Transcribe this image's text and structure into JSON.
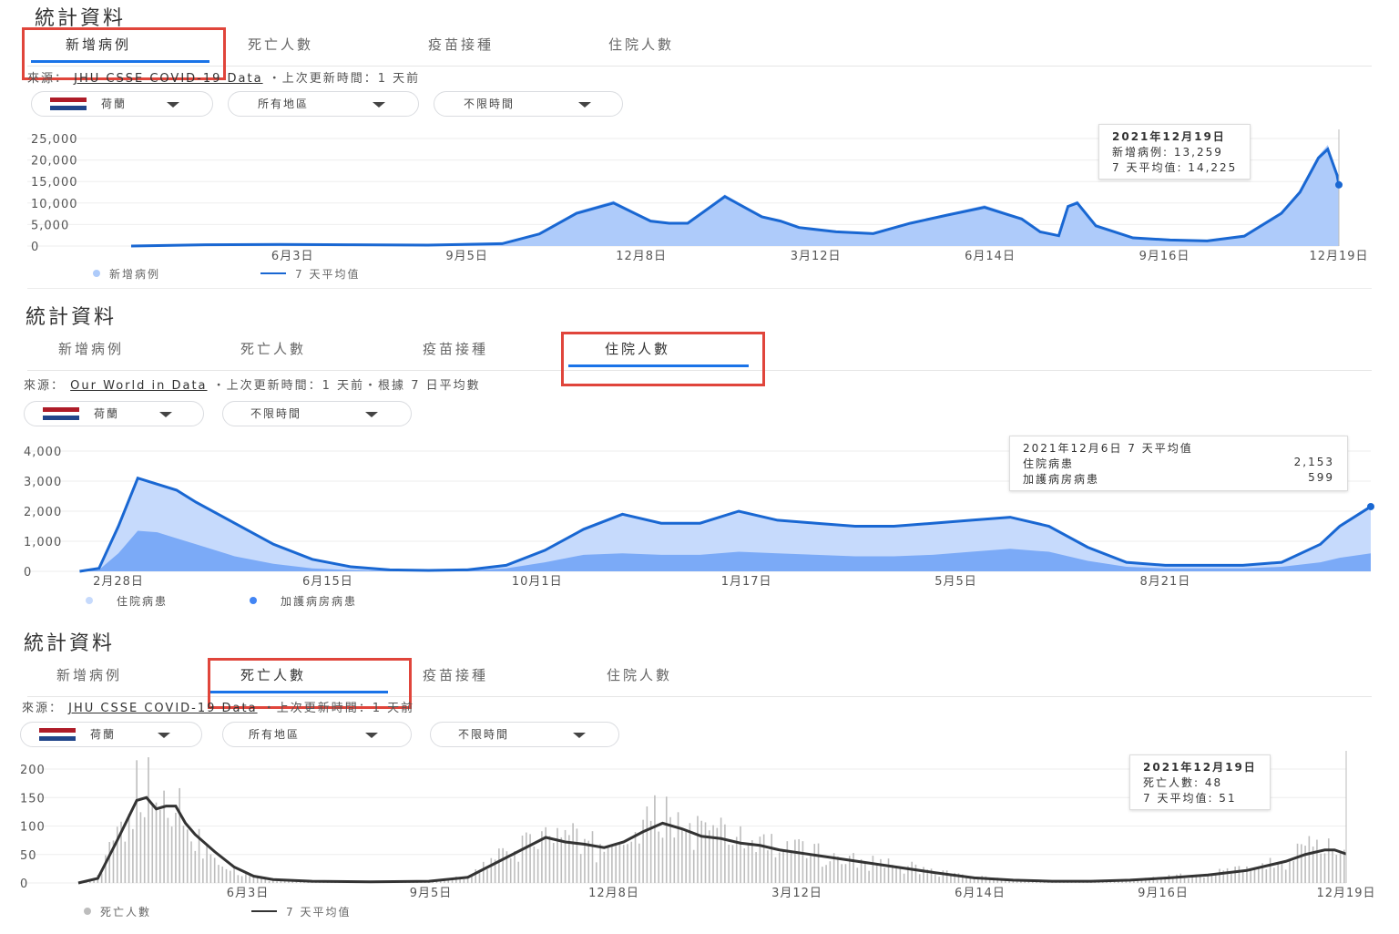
{
  "panel1": {
    "title": "統計資料",
    "tabs": [
      "新增病例",
      "死亡人數",
      "疫苗接種",
      "住院人數"
    ],
    "active_tab": "新增病例",
    "source_prefix": "來源：",
    "source_link": "JHU CSSE COVID-19 Data",
    "source_suffix": "・上次更新時間：1 天前",
    "dropdowns": [
      "荷蘭",
      "所有地區",
      "不限時間"
    ],
    "tooltip": {
      "title": "2021年12月19日",
      "line1": "新增病例: 13,259",
      "line2": "7 天平均值: 14,225"
    },
    "legend": [
      "新增病例",
      "7 天平均值"
    ]
  },
  "panel2": {
    "title": "統計資料",
    "tabs": [
      "新增病例",
      "死亡人數",
      "疫苗接種",
      "住院人數"
    ],
    "active_tab": "住院人數",
    "source_prefix": "來源：",
    "source_link": "Our World in Data",
    "source_suffix": "・上次更新時間：1 天前・根據 7 日平均數",
    "dropdowns": [
      "荷蘭",
      "不限時間"
    ],
    "tooltip": {
      "title": "2021年12月6日 7 天平均值",
      "row1_label": "住院病患",
      "row1_value": "2,153",
      "row2_label": "加護病房病患",
      "row2_value": "599"
    },
    "legend": [
      "住院病患",
      "加護病房病患"
    ]
  },
  "panel3": {
    "title": "統計資料",
    "tabs": [
      "新增病例",
      "死亡人數",
      "疫苗接種",
      "住院人數"
    ],
    "active_tab": "死亡人數",
    "source_prefix": "來源：",
    "source_link": "JHU CSSE COVID-19 Data",
    "source_suffix": "・上次更新時間：1 天前",
    "dropdowns": [
      "荷蘭",
      "所有地區",
      "不限時間"
    ],
    "tooltip": {
      "title": "2021年12月19日",
      "line1": "死亡人數: 48",
      "line2": "7 天平均值: 51"
    },
    "legend": [
      "死亡人數",
      "7 天平均值"
    ]
  },
  "colors": {
    "accent": "#1a73e8",
    "highlight": "#e0453b",
    "area_light": "#aecbfa",
    "line_blue": "#1967d2",
    "bar_gray": "#bdbdbd",
    "line_dark": "#333333"
  },
  "flag_colors": [
    "#ae1c28",
    "#ffffff",
    "#21468b"
  ],
  "chart_data": [
    {
      "type": "area",
      "ylim": [
        0,
        25000
      ],
      "yticks": [
        "25,000",
        "20,000",
        "15,000",
        "10,000",
        "5,000",
        "0"
      ],
      "ytick_values": [
        25000,
        20000,
        15000,
        10000,
        5000,
        0
      ],
      "xticks": [
        "6月3日",
        "9月5日",
        "12月8日",
        "3月12日",
        "6月14日",
        "9月16日",
        "12月19日"
      ],
      "xtick_day": [
        87,
        181,
        275,
        369,
        463,
        557,
        651
      ],
      "x_day_range": [
        0,
        651
      ],
      "series": [
        {
          "name": "新增病例",
          "x": [
            0,
            40,
            80,
            120,
            160,
            200,
            220,
            240,
            260,
            280,
            290,
            300,
            320,
            340,
            350,
            360,
            380,
            400,
            420,
            440,
            460,
            480,
            490,
            500,
            505,
            510,
            520,
            540,
            560,
            580,
            600,
            620,
            630,
            640,
            645,
            650,
            651
          ],
          "values": [
            0,
            300,
            400,
            300,
            200,
            600,
            3000,
            8000,
            10500,
            6000,
            5500,
            5500,
            12000,
            7000,
            6000,
            4500,
            3500,
            3000,
            5500,
            7500,
            9500,
            6500,
            3500,
            2500,
            9500,
            10500,
            5000,
            2000,
            1500,
            1300,
            2500,
            8000,
            13000,
            21000,
            23500,
            17000,
            13259
          ]
        },
        {
          "name": "7 天平均值",
          "x": [
            0,
            40,
            80,
            120,
            160,
            200,
            220,
            240,
            260,
            280,
            290,
            300,
            320,
            340,
            350,
            360,
            380,
            400,
            420,
            440,
            460,
            480,
            490,
            500,
            505,
            510,
            520,
            540,
            560,
            580,
            600,
            620,
            630,
            640,
            645,
            650,
            651
          ],
          "values": [
            0,
            280,
            380,
            280,
            200,
            550,
            2800,
            7600,
            10000,
            5800,
            5300,
            5300,
            11500,
            6800,
            5800,
            4300,
            3300,
            2900,
            5300,
            7200,
            9000,
            6300,
            3300,
            2400,
            9200,
            10000,
            4700,
            1900,
            1400,
            1200,
            2300,
            7600,
            12500,
            20500,
            22500,
            16500,
            14225
          ]
        }
      ]
    },
    {
      "type": "area",
      "ylim": [
        0,
        4000
      ],
      "yticks": [
        "4,000",
        "3,000",
        "2,000",
        "1,000",
        "0"
      ],
      "ytick_values": [
        4000,
        3000,
        2000,
        1000,
        0
      ],
      "xticks": [
        "2月28日",
        "6月15日",
        "10月1日",
        "1月17日",
        "5月5日",
        "8月21日"
      ],
      "xtick_day": [
        0,
        108,
        216,
        324,
        432,
        540
      ],
      "x_day_range": [
        0,
        646
      ],
      "series": [
        {
          "name": "住院病患",
          "x": [
            -20,
            -10,
            0,
            10,
            20,
            30,
            40,
            60,
            80,
            100,
            120,
            140,
            160,
            180,
            200,
            220,
            240,
            260,
            280,
            300,
            320,
            340,
            360,
            380,
            400,
            420,
            440,
            460,
            480,
            500,
            520,
            540,
            560,
            580,
            600,
            620,
            630,
            646
          ],
          "values": [
            0,
            100,
            1500,
            3100,
            2900,
            2700,
            2300,
            1600,
            900,
            400,
            150,
            50,
            30,
            50,
            200,
            700,
            1400,
            1900,
            1600,
            1600,
            2000,
            1700,
            1600,
            1500,
            1500,
            1600,
            1700,
            1800,
            1500,
            800,
            300,
            200,
            200,
            200,
            300,
            900,
            1500,
            2153
          ]
        },
        {
          "name": "加護病房病患",
          "x": [
            -20,
            -10,
            0,
            10,
            20,
            30,
            40,
            60,
            80,
            100,
            120,
            140,
            160,
            180,
            200,
            220,
            240,
            260,
            280,
            300,
            320,
            340,
            360,
            380,
            400,
            420,
            440,
            460,
            480,
            500,
            520,
            540,
            560,
            580,
            600,
            620,
            630,
            646
          ],
          "values": [
            0,
            50,
            600,
            1350,
            1300,
            1100,
            900,
            500,
            250,
            100,
            40,
            20,
            15,
            30,
            100,
            300,
            550,
            600,
            550,
            550,
            650,
            600,
            550,
            500,
            500,
            550,
            650,
            750,
            650,
            350,
            150,
            100,
            100,
            100,
            150,
            300,
            450,
            599
          ]
        }
      ]
    },
    {
      "type": "bar",
      "ylim": [
        0,
        200
      ],
      "yticks": [
        "200",
        "150",
        "100",
        "50",
        "0"
      ],
      "ytick_values": [
        200,
        150,
        100,
        50,
        0
      ],
      "xticks": [
        "6月3日",
        "9月5日",
        "12月8日",
        "3月12日",
        "6月14日",
        "9月16日",
        "12月19日"
      ],
      "xtick_day": [
        87,
        181,
        275,
        369,
        463,
        557,
        651
      ],
      "x_day_range": [
        0,
        651
      ],
      "series": [
        {
          "name": "死亡人數",
          "x": [
            0,
            10,
            20,
            30,
            35,
            40,
            45,
            50,
            55,
            60,
            70,
            80,
            90,
            100,
            120,
            150,
            180,
            200,
            220,
            240,
            250,
            260,
            270,
            280,
            290,
            300,
            310,
            320,
            330,
            340,
            350,
            360,
            380,
            400,
            420,
            440,
            460,
            480,
            500,
            520,
            540,
            560,
            580,
            600,
            620,
            630,
            640,
            645,
            651
          ],
          "values": [
            0,
            10,
            80,
            150,
            160,
            130,
            140,
            150,
            100,
            80,
            50,
            25,
            10,
            5,
            3,
            2,
            3,
            10,
            50,
            85,
            75,
            70,
            60,
            75,
            95,
            115,
            100,
            85,
            85,
            75,
            70,
            60,
            50,
            40,
            30,
            20,
            10,
            5,
            3,
            3,
            5,
            10,
            15,
            25,
            40,
            55,
            65,
            60,
            48
          ]
        },
        {
          "name": "7 天平均值",
          "x": [
            0,
            10,
            20,
            30,
            35,
            40,
            45,
            50,
            55,
            60,
            70,
            80,
            90,
            100,
            120,
            150,
            180,
            200,
            220,
            240,
            250,
            260,
            270,
            280,
            290,
            300,
            310,
            320,
            330,
            340,
            350,
            360,
            380,
            400,
            420,
            440,
            460,
            480,
            500,
            520,
            540,
            560,
            580,
            600,
            620,
            630,
            640,
            645,
            651
          ],
          "values": [
            0,
            8,
            75,
            145,
            150,
            130,
            135,
            135,
            105,
            85,
            55,
            28,
            12,
            6,
            3,
            2,
            3,
            10,
            45,
            80,
            72,
            68,
            62,
            72,
            90,
            105,
            95,
            82,
            78,
            70,
            66,
            58,
            48,
            38,
            28,
            18,
            9,
            5,
            3,
            3,
            5,
            9,
            14,
            22,
            38,
            50,
            58,
            58,
            51
          ]
        }
      ]
    }
  ]
}
